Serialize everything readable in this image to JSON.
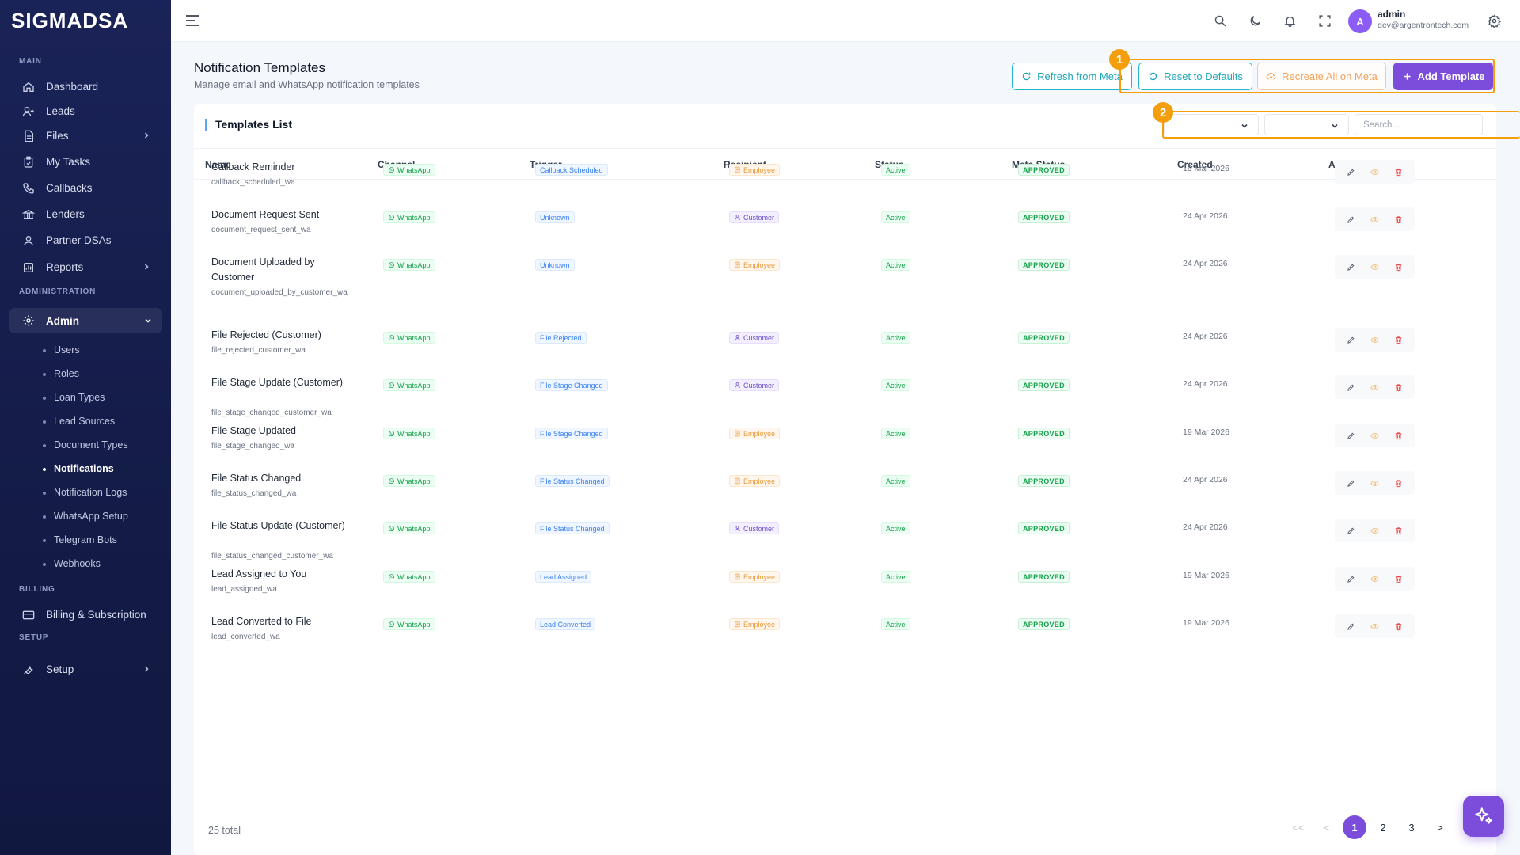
{
  "brand": "SIGMADSA",
  "sidebar": {
    "sections": {
      "main": "MAIN",
      "administration": "ADMINISTRATION",
      "billing": "BILLING",
      "setup": "SETUP"
    },
    "main_items": [
      {
        "label": "Dashboard",
        "icon": "home-icon"
      },
      {
        "label": "Leads",
        "icon": "user-plus-icon"
      },
      {
        "label": "Files",
        "icon": "file-icon",
        "chevron": true
      },
      {
        "label": "My Tasks",
        "icon": "clipboard-check-icon"
      },
      {
        "label": "Callbacks",
        "icon": "phone-icon"
      },
      {
        "label": "Lenders",
        "icon": "bank-icon"
      },
      {
        "label": "Partner DSAs",
        "icon": "users-icon"
      },
      {
        "label": "Reports",
        "icon": "bar-chart-icon",
        "chevron": true
      }
    ],
    "admin_label": "Admin",
    "admin_sub": [
      "Users",
      "Roles",
      "Loan Types",
      "Lead Sources",
      "Document Types",
      "Notifications",
      "Notification Logs",
      "WhatsApp Setup",
      "Telegram Bots",
      "Webhooks"
    ],
    "active_sub": "Notifications",
    "billing_label": "Billing & Subscription",
    "setup_label": "Setup"
  },
  "topbar": {
    "user_initial": "A",
    "user_name": "admin",
    "user_email": "dev@argentrontech.com"
  },
  "page": {
    "title": "Notification Templates",
    "subtitle": "Manage email and WhatsApp notification templates",
    "buttons": {
      "refresh": "Refresh from Meta",
      "reset": "Reset to Defaults",
      "recreate": "Recreate All on Meta",
      "add": "Add Template"
    },
    "markers": [
      "1",
      "2"
    ]
  },
  "card": {
    "title": "Templates List",
    "search_placeholder": "Search...",
    "columns": [
      "Name",
      "Channel",
      "Trigger",
      "Recipient",
      "Status",
      "Meta Status",
      "Created",
      "Actions"
    ],
    "rows": [
      {
        "name": "Callback Reminder",
        "key": "callback_scheduled_wa",
        "channel": "WhatsApp",
        "trigger": "Callback Scheduled",
        "recipient": "Employee",
        "status": "Active",
        "meta": "APPROVED",
        "created": "19 Mar 2026"
      },
      {
        "name": "Document Request Sent",
        "key": "document_request_sent_wa",
        "channel": "WhatsApp",
        "trigger": "Unknown",
        "recipient": "Customer",
        "status": "Active",
        "meta": "APPROVED",
        "created": "24 Apr 2026"
      },
      {
        "name": "Document Uploaded by Customer",
        "key": "document_uploaded_by_customer_wa",
        "channel": "WhatsApp",
        "trigger": "Unknown",
        "recipient": "Employee",
        "status": "Active",
        "meta": "APPROVED",
        "created": "24 Apr 2026"
      },
      {
        "name": "File Rejected (Customer)",
        "key": "file_rejected_customer_wa",
        "channel": "WhatsApp",
        "trigger": "File Rejected",
        "recipient": "Customer",
        "status": "Active",
        "meta": "APPROVED",
        "created": "24 Apr 2026"
      },
      {
        "name": "File Stage Update (Customer)",
        "key": "file_stage_changed_customer_wa",
        "channel": "WhatsApp",
        "trigger": "File Stage Changed",
        "recipient": "Customer",
        "status": "Active",
        "meta": "APPROVED",
        "created": "24 Apr 2026"
      },
      {
        "name": "File Stage Updated",
        "key": "file_stage_changed_wa",
        "channel": "WhatsApp",
        "trigger": "File Stage Changed",
        "recipient": "Employee",
        "status": "Active",
        "meta": "APPROVED",
        "created": "19 Mar 2026"
      },
      {
        "name": "File Status Changed",
        "key": "file_status_changed_wa",
        "channel": "WhatsApp",
        "trigger": "File Status Changed",
        "recipient": "Employee",
        "status": "Active",
        "meta": "APPROVED",
        "created": "24 Apr 2026"
      },
      {
        "name": "File Status Update (Customer)",
        "key": "file_status_changed_customer_wa",
        "channel": "WhatsApp",
        "trigger": "File Status Changed",
        "recipient": "Customer",
        "status": "Active",
        "meta": "APPROVED",
        "created": "24 Apr 2026"
      },
      {
        "name": "Lead Assigned to You",
        "key": "lead_assigned_wa",
        "channel": "WhatsApp",
        "trigger": "Lead Assigned",
        "recipient": "Employee",
        "status": "Active",
        "meta": "APPROVED",
        "created": "19 Mar 2026"
      },
      {
        "name": "Lead Converted to File",
        "key": "lead_converted_wa",
        "channel": "WhatsApp",
        "trigger": "Lead Converted",
        "recipient": "Employee",
        "status": "Active",
        "meta": "APPROVED",
        "created": "19 Mar 2026"
      }
    ],
    "total": "25 total",
    "pagination": [
      "<<",
      "<",
      "1",
      "2",
      "3",
      ">"
    ],
    "current_page": "1"
  },
  "colors": {
    "sidebar": "#1a2357",
    "accent": "#7c4ddb",
    "teal": "#22b8c9",
    "highlight": "#f59e0b"
  }
}
